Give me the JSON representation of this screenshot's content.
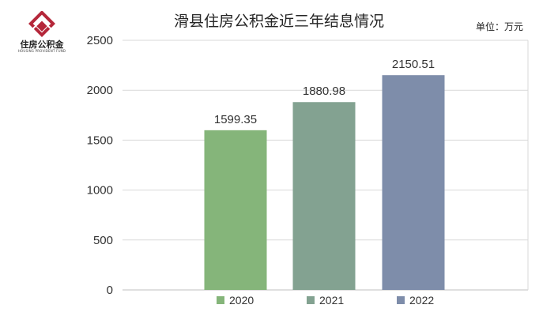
{
  "logo": {
    "name_cn": "住房公积金",
    "name_en": "HOUSING PROVIDENT FUND",
    "color": "#b5273a"
  },
  "title": "滑县住房公积金近三年结息情况",
  "unit": "单位：万元",
  "colors": {
    "grid": "#d9d9d9",
    "axis": "#bfbfbf",
    "text": "#333333"
  },
  "chart_data": {
    "type": "bar",
    "title": "滑县住房公积金近三年结息情况",
    "xlabel": "",
    "ylabel": "",
    "ylim": [
      0,
      2500
    ],
    "yticks": [
      0,
      500,
      1000,
      1500,
      2000,
      2500
    ],
    "grid": true,
    "legend_position": "bottom",
    "series": [
      {
        "name": "2020",
        "value": 1599.35,
        "label": "1599.35",
        "color": "#85b57a"
      },
      {
        "name": "2021",
        "value": 1880.98,
        "label": "1880.98",
        "color": "#83a291"
      },
      {
        "name": "2022",
        "value": 2150.51,
        "label": "2150.51",
        "color": "#7e8daa"
      }
    ]
  }
}
